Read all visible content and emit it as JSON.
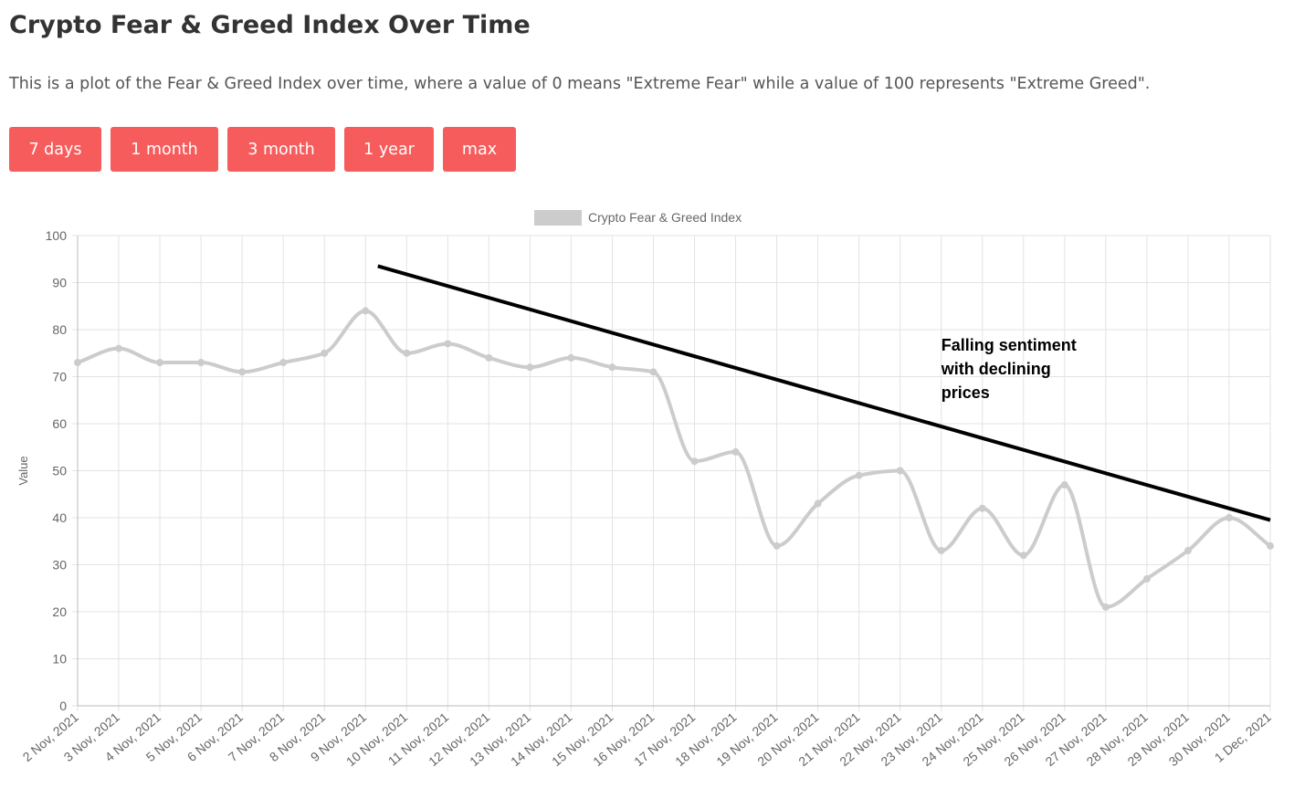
{
  "page": {
    "title": "Crypto Fear & Greed Index Over Time",
    "description": "This is a plot of the Fear & Greed Index over time, where a value of 0 means \"Extreme Fear\" while a value of 100 represents \"Extreme Greed\"."
  },
  "range_buttons": [
    {
      "label": "7 days"
    },
    {
      "label": "1 month"
    },
    {
      "label": "3 month"
    },
    {
      "label": "1 year"
    },
    {
      "label": "max"
    }
  ],
  "colors": {
    "button": "#f75c5c",
    "series": "#cccccc",
    "trendline": "#000000",
    "grid": "#e3e3e3"
  },
  "chart_data": {
    "type": "line",
    "title": "",
    "xlabel": "",
    "ylabel": "Value",
    "ylim": [
      0,
      100
    ],
    "yticks": [
      0,
      10,
      20,
      30,
      40,
      50,
      60,
      70,
      80,
      90,
      100
    ],
    "grid": true,
    "legend_position": "top-center",
    "categories": [
      "2 Nov, 2021",
      "3 Nov, 2021",
      "4 Nov, 2021",
      "5 Nov, 2021",
      "6 Nov, 2021",
      "7 Nov, 2021",
      "8 Nov, 2021",
      "9 Nov, 2021",
      "10 Nov, 2021",
      "11 Nov, 2021",
      "12 Nov, 2021",
      "13 Nov, 2021",
      "14 Nov, 2021",
      "15 Nov, 2021",
      "16 Nov, 2021",
      "17 Nov, 2021",
      "18 Nov, 2021",
      "19 Nov, 2021",
      "20 Nov, 2021",
      "21 Nov, 2021",
      "22 Nov, 2021",
      "23 Nov, 2021",
      "24 Nov, 2021",
      "25 Nov, 2021",
      "26 Nov, 2021",
      "27 Nov, 2021",
      "28 Nov, 2021",
      "29 Nov, 2021",
      "30 Nov, 2021",
      "1 Dec, 2021"
    ],
    "series": [
      {
        "name": "Crypto Fear & Greed Index",
        "values": [
          73,
          76,
          73,
          73,
          71,
          73,
          75,
          84,
          75,
          77,
          74,
          72,
          74,
          72,
          71,
          52,
          54,
          34,
          43,
          49,
          50,
          33,
          42,
          32,
          47,
          21,
          27,
          33,
          40,
          34
        ]
      }
    ],
    "annotations": [
      {
        "type": "trendline",
        "from": {
          "x": "9 Nov, 2021",
          "y": 93.5
        },
        "to": {
          "x": "1 Dec, 2021",
          "y": 39.5
        },
        "x_offset_from": 0.3
      },
      {
        "type": "text",
        "lines": [
          "Falling sentiment",
          "with declining",
          "prices"
        ],
        "anchor_x": "23 Nov, 2021",
        "anchor_y": 75.5
      }
    ]
  }
}
